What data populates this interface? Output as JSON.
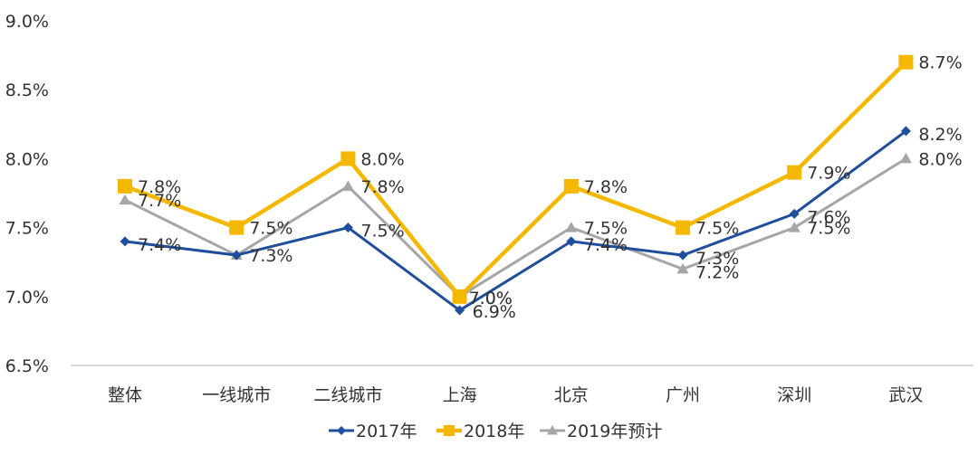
{
  "chart_data": {
    "type": "line",
    "title": "",
    "xlabel": "",
    "ylabel": "",
    "ylim": [
      6.5,
      9.0
    ],
    "yticks": [
      6.5,
      7.0,
      7.5,
      8.0,
      8.5,
      9.0
    ],
    "ytick_labels": [
      "6.5%",
      "7.0%",
      "7.5%",
      "8.0%",
      "8.5%",
      "9.0%"
    ],
    "grid": false,
    "legend_position": "bottom-center",
    "categories": [
      "整体",
      "一线城市",
      "二线城市",
      "上海",
      "北京",
      "广州",
      "深圳",
      "武汉"
    ],
    "series": [
      {
        "name": "2017年",
        "color": "#1f4e9c",
        "marker": "diamond",
        "values": [
          7.4,
          7.3,
          7.5,
          6.9,
          7.4,
          7.3,
          7.6,
          8.2
        ],
        "labels": [
          "7.4%",
          "",
          "7.5%",
          "6.9%",
          "7.4%",
          "7.3%",
          "7.6%",
          "8.2%"
        ]
      },
      {
        "name": "2018年",
        "color": "#f5b800",
        "marker": "square",
        "values": [
          7.8,
          7.5,
          8.0,
          7.0,
          7.8,
          7.5,
          7.9,
          8.7
        ],
        "labels": [
          "7.8%",
          "7.5%",
          "8.0%",
          "7.0%",
          "7.8%",
          "7.5%",
          "7.9%",
          "8.7%"
        ]
      },
      {
        "name": "2019年预计",
        "color": "#a6a6a6",
        "marker": "triangle",
        "values": [
          7.7,
          7.3,
          7.8,
          7.0,
          7.5,
          7.2,
          7.5,
          8.0
        ],
        "labels": [
          "7.7%",
          "7.3%",
          "7.8%",
          "7.0%",
          "7.5%",
          "7.2%",
          "7.5%",
          "8.0%"
        ]
      }
    ]
  }
}
